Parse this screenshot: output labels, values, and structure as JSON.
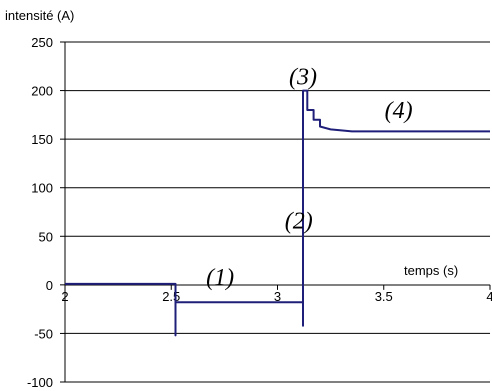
{
  "chart_data": {
    "type": "line",
    "ylabel": "intensité (A)",
    "xlabel": "temps (s)",
    "xlim": [
      2,
      4
    ],
    "ylim": [
      -100,
      250
    ],
    "grid": true,
    "x_ticks": [
      "2",
      "2.5",
      "3",
      "3.5",
      "4"
    ],
    "y_ticks": [
      "250",
      "200",
      "150",
      "100",
      "50",
      "0",
      "-50",
      "-100"
    ],
    "series": [
      {
        "color": "#1f1f7a",
        "points": [
          [
            2.0,
            1
          ],
          [
            2.52,
            1
          ],
          [
            2.52,
            -52
          ],
          [
            2.52,
            -18
          ],
          [
            3.0,
            -18
          ],
          [
            3.12,
            -18
          ],
          [
            3.12,
            -42
          ],
          [
            3.12,
            200
          ],
          [
            3.14,
            200
          ],
          [
            3.14,
            180
          ],
          [
            3.17,
            180
          ],
          [
            3.17,
            170
          ],
          [
            3.2,
            170
          ],
          [
            3.2,
            163
          ],
          [
            3.25,
            160
          ],
          [
            3.35,
            158
          ],
          [
            3.5,
            158
          ],
          [
            3.7,
            158
          ],
          [
            3.9,
            158
          ],
          [
            4.0,
            158
          ]
        ]
      }
    ],
    "annotations": [
      {
        "text": "(1)",
        "x": 2.73,
        "y": 0
      },
      {
        "text": "(2)",
        "x": 3.1,
        "y": 58
      },
      {
        "text": "(3)",
        "x": 3.12,
        "y": 206
      },
      {
        "text": "(4)",
        "x": 3.57,
        "y": 172
      }
    ]
  }
}
